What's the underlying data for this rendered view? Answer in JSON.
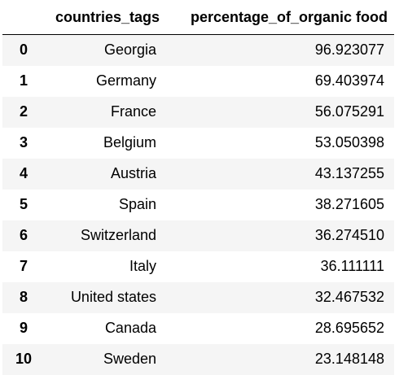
{
  "table": {
    "columns": [
      "",
      "countries_tags",
      "percentage_of_organic food"
    ],
    "rows": [
      {
        "index": "0",
        "country": "Georgia",
        "pct": "96.923077"
      },
      {
        "index": "1",
        "country": "Germany",
        "pct": "69.403974"
      },
      {
        "index": "2",
        "country": "France",
        "pct": "56.075291"
      },
      {
        "index": "3",
        "country": "Belgium",
        "pct": "53.050398"
      },
      {
        "index": "4",
        "country": "Austria",
        "pct": "43.137255"
      },
      {
        "index": "5",
        "country": "Spain",
        "pct": "38.271605"
      },
      {
        "index": "6",
        "country": "Switzerland",
        "pct": "36.274510"
      },
      {
        "index": "7",
        "country": "Italy",
        "pct": "36.111111"
      },
      {
        "index": "8",
        "country": "United states",
        "pct": "32.467532"
      },
      {
        "index": "9",
        "country": "Canada",
        "pct": "28.695652"
      },
      {
        "index": "10",
        "country": "Sweden",
        "pct": "23.148148"
      }
    ]
  }
}
